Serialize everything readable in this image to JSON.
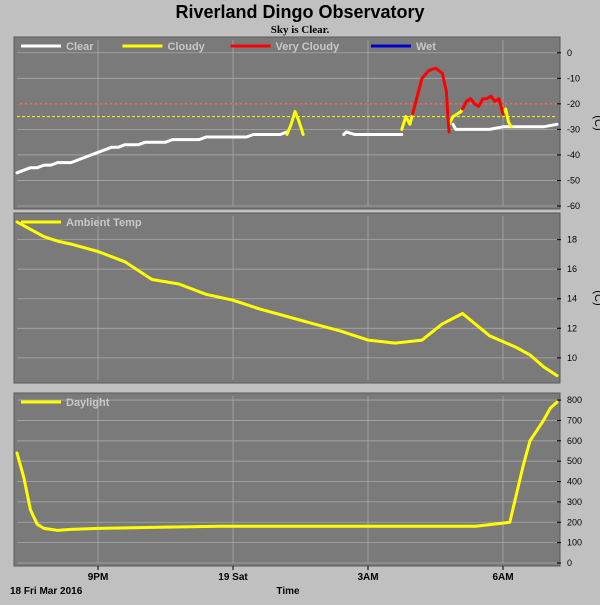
{
  "title": "Riverland Dingo Observatory",
  "subtitle": "Sky is Clear.",
  "colors": {
    "background": "#c0c0c0",
    "panel_bg": "#7a7a7a",
    "grid": "#a8a8a8",
    "clear": "#ffffff",
    "cloudy": "#ffff00",
    "very_cloudy": "#ff0000",
    "wet": "#0000cc",
    "threshold_cloudy": "#ffff00",
    "threshold_very_cloudy": "#ff4040"
  },
  "chart_data": [
    {
      "type": "line",
      "panel": "sky",
      "ylabel": "(C)",
      "ylim": [
        -60,
        5
      ],
      "yticks": [
        0,
        -10,
        -20,
        -30,
        -40,
        -50,
        -60
      ],
      "ytick_labels": [
        "0",
        "-10",
        "-20",
        "-30",
        "-40",
        "-50",
        "-60"
      ],
      "grid": true,
      "legend_placement": "top-left",
      "legend": [
        {
          "label": "Clear",
          "color": "#ffffff"
        },
        {
          "label": "Cloudy",
          "color": "#ffff00"
        },
        {
          "label": "Very Cloudy",
          "color": "#ff0000"
        },
        {
          "label": "Wet",
          "color": "#0000cc"
        }
      ],
      "threshold_lines": [
        {
          "value": -20,
          "color": "#ff4040"
        },
        {
          "value": -25,
          "color": "#ffff00"
        }
      ],
      "series": [
        {
          "name": "Clear",
          "color": "#ffffff",
          "segments": [
            {
              "x": [
                0,
                0.5,
                1.0,
                1.5,
                2.0,
                2.5,
                3.0,
                3.5,
                4.0,
                4.5,
                5.0,
                5.5,
                6.0,
                6.5,
                7.0,
                7.5,
                8.0,
                8.5,
                9.0,
                9.5,
                10.0,
                10.5,
                11.0,
                11.5,
                12.0,
                12.5,
                13.0,
                13.5,
                14.0,
                14.5,
                15.0,
                15.5,
                16.0,
                16.5,
                17.0,
                17.5,
                18.0,
                18.5,
                19.0,
                19.5,
                20.0
              ],
              "y": [
                -47,
                -46,
                -45,
                -45,
                -44,
                -44,
                -43,
                -43,
                -43,
                -42,
                -41,
                -40,
                -39,
                -38,
                -37,
                -37,
                -36,
                -36,
                -36,
                -35,
                -35,
                -35,
                -35,
                -34,
                -34,
                -34,
                -34,
                -34,
                -33,
                -33,
                -33,
                -33,
                -33,
                -33,
                -33,
                -32,
                -32,
                -32,
                -32,
                -32,
                -31
              ]
            },
            {
              "x": [
                24.2,
                24.4,
                25,
                26,
                27,
                28,
                28.5
              ],
              "y": [
                -32,
                -31,
                -32,
                -32,
                -32,
                -32,
                -32
              ]
            },
            {
              "x": [
                32.3,
                32.5,
                33,
                34,
                35,
                36,
                37,
                38,
                39,
                40
              ],
              "y": [
                -28,
                -30,
                -30,
                -30,
                -30,
                -29,
                -29,
                -29,
                -29,
                -28
              ]
            }
          ]
        },
        {
          "name": "Cloudy",
          "color": "#ffff00",
          "segments": [
            {
              "x": [
                20.0,
                20.3,
                20.6,
                20.9,
                21.2
              ],
              "y": [
                -32,
                -28,
                -23,
                -27,
                -32
              ]
            },
            {
              "x": [
                28.5,
                28.8,
                29.1,
                29.3
              ],
              "y": [
                -30,
                -25,
                -28,
                -24
              ]
            },
            {
              "x": [
                32.0,
                32.3,
                32.6,
                32.9,
                33.0
              ],
              "y": [
                -28,
                -25,
                -24,
                -23,
                -22
              ]
            },
            {
              "x": [
                36.0,
                36.2,
                36.4,
                36.6
              ],
              "y": [
                -24,
                -22,
                -27,
                -29
              ]
            }
          ]
        },
        {
          "name": "Very Cloudy",
          "color": "#ff0000",
          "segments": [
            {
              "x": [
                29.3,
                29.6,
                30.0,
                30.5,
                31.0,
                31.5,
                31.8,
                32.0
              ],
              "y": [
                -24,
                -18,
                -10,
                -7,
                -6,
                -8,
                -15,
                -31
              ]
            },
            {
              "x": [
                33.0,
                33.3,
                33.6,
                33.9,
                34.2,
                34.5,
                34.8,
                35.1,
                35.4,
                35.7,
                36.0
              ],
              "y": [
                -22,
                -19,
                -18,
                -20,
                -21,
                -18,
                -18,
                -17,
                -19,
                -18,
                -24
              ]
            }
          ]
        }
      ]
    },
    {
      "type": "line",
      "panel": "ambient",
      "ylabel": "(C)",
      "ylim": [
        8.5,
        19.6
      ],
      "yticks": [
        10,
        12,
        14,
        16,
        18
      ],
      "ytick_labels": [
        "10",
        "12",
        "14",
        "16",
        "18"
      ],
      "grid": true,
      "legend_placement": "top-left",
      "legend": [
        {
          "label": "Ambient Temp",
          "color": "#ffff00"
        }
      ],
      "series": [
        {
          "name": "Ambient Temp",
          "color": "#ffff00",
          "x": [
            0,
            1,
            2,
            3,
            4,
            6,
            8,
            10,
            12,
            14,
            16,
            18,
            20,
            22,
            24,
            26,
            28,
            30,
            31.5,
            33,
            35,
            36,
            37,
            38,
            39,
            40
          ],
          "y": [
            19.2,
            18.7,
            18.2,
            17.9,
            17.7,
            17.2,
            16.5,
            15.3,
            15.0,
            14.3,
            13.9,
            13.3,
            12.8,
            12.3,
            11.8,
            11.2,
            11.0,
            11.2,
            12.3,
            13.0,
            11.5,
            11.1,
            10.7,
            10.2,
            9.4,
            8.8
          ]
        }
      ]
    },
    {
      "type": "line",
      "panel": "daylight",
      "ylabel": "",
      "ylim": [
        0,
        820
      ],
      "yticks": [
        0,
        100,
        200,
        300,
        400,
        500,
        600,
        700,
        800
      ],
      "ytick_labels": [
        "0",
        "100",
        "200",
        "300",
        "400",
        "500",
        "600",
        "700",
        "800"
      ],
      "grid": true,
      "legend_placement": "top-left",
      "legend": [
        {
          "label": "Daylight",
          "color": "#ffff00"
        }
      ],
      "series": [
        {
          "name": "Daylight",
          "color": "#ffff00",
          "x": [
            0,
            0.5,
            1.0,
            1.5,
            2.0,
            3.0,
            4.0,
            6.0,
            10.0,
            15.0,
            20.0,
            25.0,
            30.0,
            34.0,
            36.5,
            37.5,
            38.0,
            38.5,
            39.0,
            39.5,
            40.0
          ],
          "y": [
            540,
            420,
            260,
            190,
            170,
            160,
            165,
            170,
            175,
            180,
            180,
            180,
            180,
            180,
            200,
            480,
            600,
            650,
            700,
            760,
            790
          ]
        }
      ]
    }
  ],
  "x_axis": {
    "label": "Time",
    "start_label": "18 Fri Mar 2016",
    "ticks": [
      {
        "x": 6,
        "label": "9PM"
      },
      {
        "x": 16,
        "label": "19 Sat"
      },
      {
        "x": 26,
        "label": "3AM"
      },
      {
        "x": 36,
        "label": "6AM"
      }
    ],
    "xlim": [
      0,
      40
    ]
  }
}
